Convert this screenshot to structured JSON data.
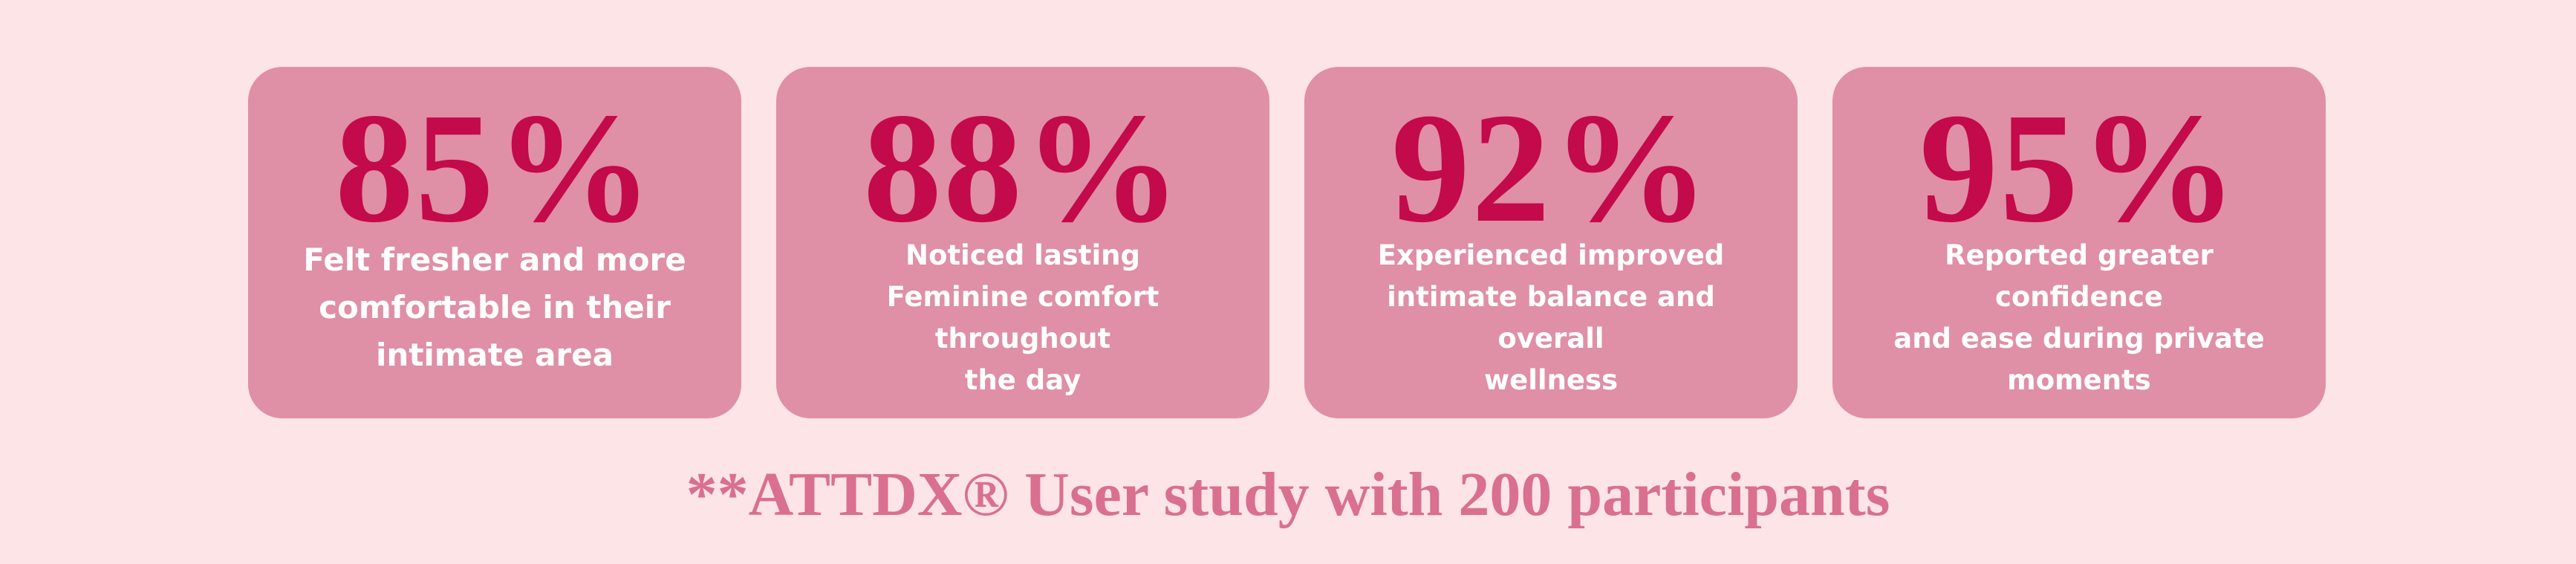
{
  "cards": [
    {
      "stat": "85%",
      "text": "Felt fresher and more\ncomfortable in their\nintimate area"
    },
    {
      "stat": "88%",
      "text": "Noticed lasting\nFeminine comfort throughout\nthe day"
    },
    {
      "stat": "92%",
      "text": "Experienced improved\nintimate balance and overall\nwellness"
    },
    {
      "stat": "95%",
      "text": "Reported greater confidence\nand ease during private\nmoments"
    }
  ],
  "footnote": "**ATTDX® User study with 200 participants",
  "colors": {
    "background": "#fde4e6",
    "card": "#df8fa6",
    "stat_text": "#c30a4a",
    "description_text": "#ffffff",
    "footnote_text": "#d9708f"
  }
}
